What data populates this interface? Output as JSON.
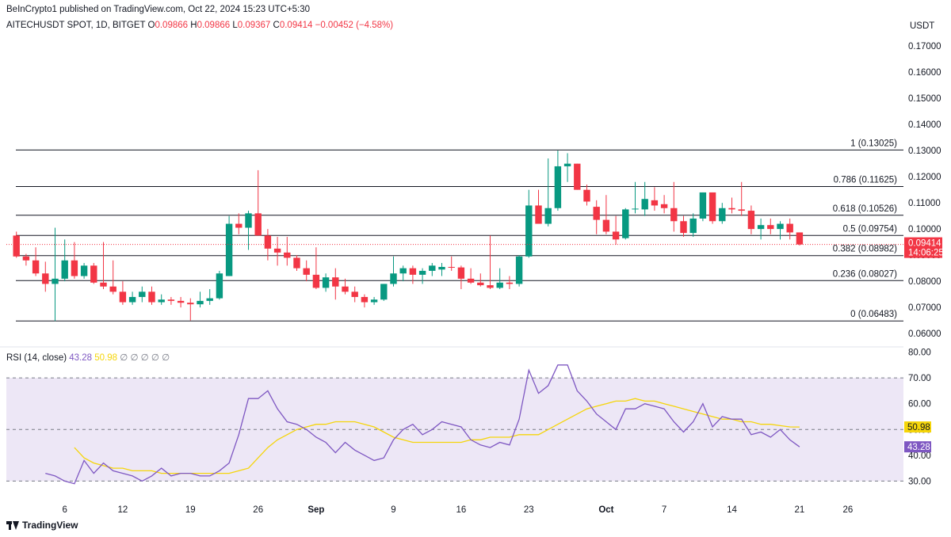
{
  "header": {
    "published_by": "BeInCrypto1 published on TradingView.com, Oct 22, 2024 15:23 UTC+5:30"
  },
  "legend": {
    "symbol": "AITECHUSDT SPOT, 1D, BITGET",
    "o_label": "O",
    "o_value": "0.09866",
    "h_label": "H",
    "h_value": "0.09866",
    "l_label": "L",
    "l_value": "0.09367",
    "c_label": "C",
    "c_value": "0.09414",
    "change": "−0.00452 (−4.58%)"
  },
  "currency": "USDT",
  "price_tag": {
    "price": "0.09414",
    "countdown": "14:06:25",
    "color": "#f23645"
  },
  "rsi_legend": {
    "label": "RSI (14, close)",
    "rsi": "43.28",
    "ma": "50.98",
    "circles": "∅ ∅ ∅ ∅ ∅"
  },
  "rsi_tags": {
    "ma": "50.98",
    "rsi": "43.28"
  },
  "footer": {
    "brand": "TradingView"
  },
  "colors": {
    "up": "#089981",
    "down": "#f23645",
    "rsi": "#7e57c2",
    "rsi_ma": "#f5d50a",
    "rsi_band": "#ede7f6"
  },
  "chart_data": {
    "type": "candlestick",
    "price_axis": {
      "ticks": [
        "0.17000",
        "0.16000",
        "0.15000",
        "0.14000",
        "0.13000",
        "0.12000",
        "0.11000",
        "0.10000",
        "0.09000",
        "0.08000",
        "0.07000",
        "0.06000"
      ],
      "range": [
        0.0555,
        0.1755
      ]
    },
    "x_axis": {
      "labels": [
        "6",
        "12",
        "19",
        "26",
        "Sep",
        "9",
        "16",
        "23",
        "Oct",
        "7",
        "14",
        "21",
        "26"
      ],
      "label_days": [
        6,
        12,
        19,
        26,
        32,
        40,
        47,
        54,
        62,
        68,
        75,
        82,
        87
      ]
    },
    "fib_levels": [
      {
        "label": "1 (0.13025)",
        "value": 0.13025
      },
      {
        "label": "0.786 (0.11625)",
        "value": 0.11625
      },
      {
        "label": "0.618 (0.10526)",
        "value": 0.10526
      },
      {
        "label": "0.5 (0.09754)",
        "value": 0.09754
      },
      {
        "label": "0.382 (0.08982)",
        "value": 0.08982
      },
      {
        "label": "0.236 (0.08027)",
        "value": 0.08027
      },
      {
        "label": "0 (0.06483)",
        "value": 0.06483
      }
    ],
    "candles": [
      {
        "t": 1,
        "o": 0.0975,
        "h": 0.099,
        "l": 0.089,
        "c": 0.0895
      },
      {
        "t": 2,
        "o": 0.0895,
        "h": 0.0905,
        "l": 0.086,
        "c": 0.088
      },
      {
        "t": 3,
        "o": 0.088,
        "h": 0.093,
        "l": 0.082,
        "c": 0.083
      },
      {
        "t": 4,
        "o": 0.083,
        "h": 0.0875,
        "l": 0.076,
        "c": 0.079
      },
      {
        "t": 5,
        "o": 0.079,
        "h": 0.1005,
        "l": 0.0648,
        "c": 0.081
      },
      {
        "t": 6,
        "o": 0.081,
        "h": 0.096,
        "l": 0.08,
        "c": 0.088
      },
      {
        "t": 7,
        "o": 0.088,
        "h": 0.095,
        "l": 0.081,
        "c": 0.082
      },
      {
        "t": 8,
        "o": 0.082,
        "h": 0.087,
        "l": 0.081,
        "c": 0.086
      },
      {
        "t": 9,
        "o": 0.086,
        "h": 0.087,
        "l": 0.079,
        "c": 0.0795
      },
      {
        "t": 10,
        "o": 0.0795,
        "h": 0.095,
        "l": 0.077,
        "c": 0.078
      },
      {
        "t": 11,
        "o": 0.078,
        "h": 0.088,
        "l": 0.075,
        "c": 0.076
      },
      {
        "t": 12,
        "o": 0.076,
        "h": 0.08,
        "l": 0.071,
        "c": 0.072
      },
      {
        "t": 13,
        "o": 0.072,
        "h": 0.076,
        "l": 0.071,
        "c": 0.074
      },
      {
        "t": 14,
        "o": 0.074,
        "h": 0.078,
        "l": 0.072,
        "c": 0.076
      },
      {
        "t": 15,
        "o": 0.076,
        "h": 0.078,
        "l": 0.071,
        "c": 0.072
      },
      {
        "t": 16,
        "o": 0.072,
        "h": 0.075,
        "l": 0.071,
        "c": 0.073
      },
      {
        "t": 17,
        "o": 0.073,
        "h": 0.074,
        "l": 0.071,
        "c": 0.0725
      },
      {
        "t": 18,
        "o": 0.0725,
        "h": 0.074,
        "l": 0.07,
        "c": 0.0718
      },
      {
        "t": 19,
        "o": 0.0718,
        "h": 0.0735,
        "l": 0.065,
        "c": 0.0712
      },
      {
        "t": 20,
        "o": 0.0712,
        "h": 0.076,
        "l": 0.07,
        "c": 0.0725
      },
      {
        "t": 21,
        "o": 0.0725,
        "h": 0.077,
        "l": 0.071,
        "c": 0.0735
      },
      {
        "t": 22,
        "o": 0.0735,
        "h": 0.084,
        "l": 0.073,
        "c": 0.083
      },
      {
        "t": 23,
        "o": 0.082,
        "h": 0.105,
        "l": 0.082,
        "c": 0.102
      },
      {
        "t": 24,
        "o": 0.102,
        "h": 0.106,
        "l": 0.098,
        "c": 0.1005
      },
      {
        "t": 25,
        "o": 0.1005,
        "h": 0.107,
        "l": 0.092,
        "c": 0.106
      },
      {
        "t": 26,
        "o": 0.106,
        "h": 0.1225,
        "l": 0.098,
        "c": 0.0975
      },
      {
        "t": 27,
        "o": 0.0975,
        "h": 0.1,
        "l": 0.088,
        "c": 0.0925
      },
      {
        "t": 28,
        "o": 0.0925,
        "h": 0.097,
        "l": 0.086,
        "c": 0.091
      },
      {
        "t": 29,
        "o": 0.091,
        "h": 0.097,
        "l": 0.086,
        "c": 0.089
      },
      {
        "t": 30,
        "o": 0.089,
        "h": 0.09,
        "l": 0.084,
        "c": 0.085
      },
      {
        "t": 31,
        "o": 0.085,
        "h": 0.088,
        "l": 0.08,
        "c": 0.0825
      },
      {
        "t": 32,
        "o": 0.0825,
        "h": 0.093,
        "l": 0.077,
        "c": 0.0775
      },
      {
        "t": 33,
        "o": 0.0775,
        "h": 0.083,
        "l": 0.076,
        "c": 0.0815
      },
      {
        "t": 34,
        "o": 0.0815,
        "h": 0.085,
        "l": 0.073,
        "c": 0.078
      },
      {
        "t": 35,
        "o": 0.078,
        "h": 0.081,
        "l": 0.075,
        "c": 0.076
      },
      {
        "t": 36,
        "o": 0.076,
        "h": 0.078,
        "l": 0.072,
        "c": 0.074
      },
      {
        "t": 37,
        "o": 0.074,
        "h": 0.075,
        "l": 0.07,
        "c": 0.072
      },
      {
        "t": 38,
        "o": 0.072,
        "h": 0.074,
        "l": 0.071,
        "c": 0.073
      },
      {
        "t": 39,
        "o": 0.073,
        "h": 0.079,
        "l": 0.0725,
        "c": 0.079
      },
      {
        "t": 40,
        "o": 0.079,
        "h": 0.0895,
        "l": 0.078,
        "c": 0.083
      },
      {
        "t": 41,
        "o": 0.083,
        "h": 0.086,
        "l": 0.08,
        "c": 0.085
      },
      {
        "t": 42,
        "o": 0.085,
        "h": 0.086,
        "l": 0.079,
        "c": 0.0825
      },
      {
        "t": 43,
        "o": 0.0825,
        "h": 0.085,
        "l": 0.079,
        "c": 0.084
      },
      {
        "t": 44,
        "o": 0.084,
        "h": 0.087,
        "l": 0.082,
        "c": 0.086
      },
      {
        "t": 45,
        "o": 0.0845,
        "h": 0.087,
        "l": 0.082,
        "c": 0.0855
      },
      {
        "t": 46,
        "o": 0.0855,
        "h": 0.0895,
        "l": 0.084,
        "c": 0.0853
      },
      {
        "t": 47,
        "o": 0.0853,
        "h": 0.086,
        "l": 0.077,
        "c": 0.081
      },
      {
        "t": 48,
        "o": 0.081,
        "h": 0.085,
        "l": 0.079,
        "c": 0.0795
      },
      {
        "t": 49,
        "o": 0.0795,
        "h": 0.083,
        "l": 0.078,
        "c": 0.0785
      },
      {
        "t": 50,
        "o": 0.0785,
        "h": 0.0975,
        "l": 0.077,
        "c": 0.0775
      },
      {
        "t": 51,
        "o": 0.0775,
        "h": 0.085,
        "l": 0.077,
        "c": 0.0795
      },
      {
        "t": 52,
        "o": 0.0795,
        "h": 0.082,
        "l": 0.077,
        "c": 0.079
      },
      {
        "t": 53,
        "o": 0.079,
        "h": 0.09,
        "l": 0.078,
        "c": 0.0895
      },
      {
        "t": 54,
        "o": 0.0895,
        "h": 0.115,
        "l": 0.089,
        "c": 0.109
      },
      {
        "t": 55,
        "o": 0.109,
        "h": 0.115,
        "l": 0.102,
        "c": 0.102
      },
      {
        "t": 56,
        "o": 0.102,
        "h": 0.127,
        "l": 0.101,
        "c": 0.108
      },
      {
        "t": 57,
        "o": 0.108,
        "h": 0.13,
        "l": 0.107,
        "c": 0.124
      },
      {
        "t": 58,
        "o": 0.124,
        "h": 0.129,
        "l": 0.118,
        "c": 0.125
      },
      {
        "t": 59,
        "o": 0.125,
        "h": 0.125,
        "l": 0.115,
        "c": 0.115
      },
      {
        "t": 60,
        "o": 0.115,
        "h": 0.117,
        "l": 0.109,
        "c": 0.1105
      },
      {
        "t": 61,
        "o": 0.1085,
        "h": 0.111,
        "l": 0.098,
        "c": 0.1035
      },
      {
        "t": 62,
        "o": 0.1035,
        "h": 0.113,
        "l": 0.098,
        "c": 0.099
      },
      {
        "t": 63,
        "o": 0.099,
        "h": 0.105,
        "l": 0.094,
        "c": 0.096
      },
      {
        "t": 64,
        "o": 0.0965,
        "h": 0.108,
        "l": 0.096,
        "c": 0.1075
      },
      {
        "t": 65,
        "o": 0.1075,
        "h": 0.118,
        "l": 0.106,
        "c": 0.1078
      },
      {
        "t": 66,
        "o": 0.1075,
        "h": 0.118,
        "l": 0.105,
        "c": 0.1115
      },
      {
        "t": 67,
        "o": 0.111,
        "h": 0.116,
        "l": 0.107,
        "c": 0.109
      },
      {
        "t": 68,
        "o": 0.1095,
        "h": 0.113,
        "l": 0.106,
        "c": 0.108
      },
      {
        "t": 69,
        "o": 0.108,
        "h": 0.118,
        "l": 0.099,
        "c": 0.103
      },
      {
        "t": 70,
        "o": 0.103,
        "h": 0.105,
        "l": 0.097,
        "c": 0.0985
      },
      {
        "t": 71,
        "o": 0.0985,
        "h": 0.106,
        "l": 0.097,
        "c": 0.104
      },
      {
        "t": 72,
        "o": 0.104,
        "h": 0.114,
        "l": 0.103,
        "c": 0.114
      },
      {
        "t": 73,
        "o": 0.114,
        "h": 0.114,
        "l": 0.102,
        "c": 0.103
      },
      {
        "t": 74,
        "o": 0.103,
        "h": 0.11,
        "l": 0.102,
        "c": 0.108
      },
      {
        "t": 75,
        "o": 0.108,
        "h": 0.112,
        "l": 0.106,
        "c": 0.1075
      },
      {
        "t": 76,
        "o": 0.1075,
        "h": 0.118,
        "l": 0.105,
        "c": 0.107
      },
      {
        "t": 77,
        "o": 0.107,
        "h": 0.109,
        "l": 0.098,
        "c": 0.1
      },
      {
        "t": 78,
        "o": 0.1,
        "h": 0.104,
        "l": 0.096,
        "c": 0.1015
      },
      {
        "t": 79,
        "o": 0.1015,
        "h": 0.104,
        "l": 0.098,
        "c": 0.1
      },
      {
        "t": 80,
        "o": 0.1,
        "h": 0.103,
        "l": 0.096,
        "c": 0.102
      },
      {
        "t": 81,
        "o": 0.102,
        "h": 0.104,
        "l": 0.096,
        "c": 0.0987
      },
      {
        "t": 82,
        "o": 0.0987,
        "h": 0.0987,
        "l": 0.0937,
        "c": 0.0941
      }
    ],
    "rsi": {
      "ylim": [
        20,
        82
      ],
      "ticks": [
        "80.00",
        "70.00",
        "60.00",
        "50.00",
        "40.00",
        "30.00"
      ],
      "band": [
        30,
        70
      ],
      "midline": 50,
      "series": [
        {
          "values": [
            33,
            32,
            30,
            29,
            38,
            33,
            37,
            34,
            33,
            32,
            30,
            32,
            35,
            32,
            33,
            33,
            32,
            32,
            34,
            37,
            48,
            62,
            62,
            65,
            58,
            53,
            52,
            50,
            47,
            45,
            41,
            45,
            42,
            40,
            38,
            39,
            46,
            50,
            52,
            48,
            50,
            53,
            52,
            51,
            46,
            44,
            43,
            45,
            44,
            54,
            73,
            64,
            67,
            75,
            75,
            65,
            61,
            56,
            53,
            50,
            58,
            58,
            60,
            59,
            58,
            53,
            49,
            53,
            60,
            51,
            55,
            54,
            54,
            48,
            49,
            47,
            50,
            46,
            43.28
          ]
        },
        {
          "values": [
            43,
            39,
            37,
            36,
            35,
            35,
            34,
            34,
            34,
            33,
            33,
            33,
            33,
            33,
            33,
            33,
            33,
            34,
            35,
            39,
            43,
            46,
            48,
            50,
            51,
            52,
            52,
            53,
            53,
            53,
            52,
            51,
            49,
            47,
            46,
            45,
            45,
            45,
            45,
            45,
            45,
            46,
            46,
            47,
            47,
            47,
            48,
            48,
            48,
            50,
            52,
            54,
            56,
            58,
            59,
            60,
            61,
            61,
            62,
            61,
            61,
            60,
            59,
            58,
            57,
            56,
            55,
            54,
            54,
            53,
            53,
            52,
            52,
            51.5,
            51,
            50.98
          ]
        }
      ]
    }
  }
}
